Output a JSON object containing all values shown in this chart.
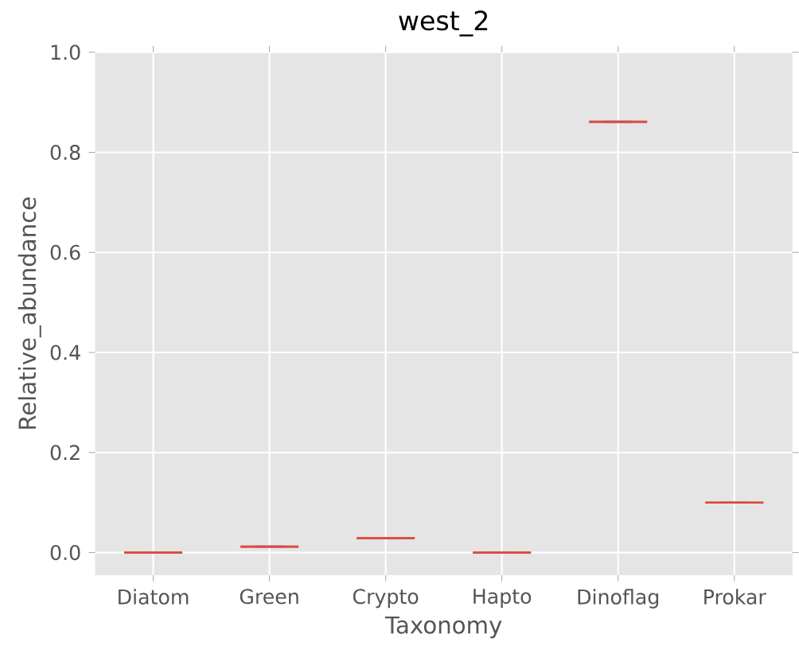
{
  "chart_data": {
    "type": "box",
    "title": "west_2",
    "xlabel": "Taxonomy",
    "ylabel": "Relative_abundance",
    "categories": [
      "Diatom",
      "Green",
      "Crypto",
      "Hapto",
      "Dinoflag",
      "Prokar"
    ],
    "boxes": [
      {
        "low": 0,
        "q1": 0,
        "median": 0,
        "q3": 0,
        "high": 0
      },
      {
        "low": 0.012,
        "q1": 0.012,
        "median": 0.012,
        "q3": 0.012,
        "high": 0.012
      },
      {
        "low": 0.029,
        "q1": 0.029,
        "median": 0.029,
        "q3": 0.029,
        "high": 0.029
      },
      {
        "low": 0,
        "q1": 0,
        "median": 0,
        "q3": 0,
        "high": 0
      },
      {
        "low": 0.861,
        "q1": 0.861,
        "median": 0.861,
        "q3": 0.861,
        "high": 0.861
      },
      {
        "low": 0.1,
        "q1": 0.1,
        "median": 0.1,
        "q3": 0.1,
        "high": 0.1
      }
    ],
    "color": "#988ed5",
    "ylim": [
      -0.045,
      1.0
    ],
    "yticks": [
      {
        "value": 0,
        "label": "0.0"
      },
      {
        "value": 0.2,
        "label": "0.2"
      },
      {
        "value": 0.4,
        "label": "0.4"
      },
      {
        "value": 0.6,
        "label": "0.6"
      },
      {
        "value": 0.8,
        "label": "0.8"
      },
      {
        "value": 1.0,
        "label": "1.0"
      }
    ],
    "grid": true
  }
}
